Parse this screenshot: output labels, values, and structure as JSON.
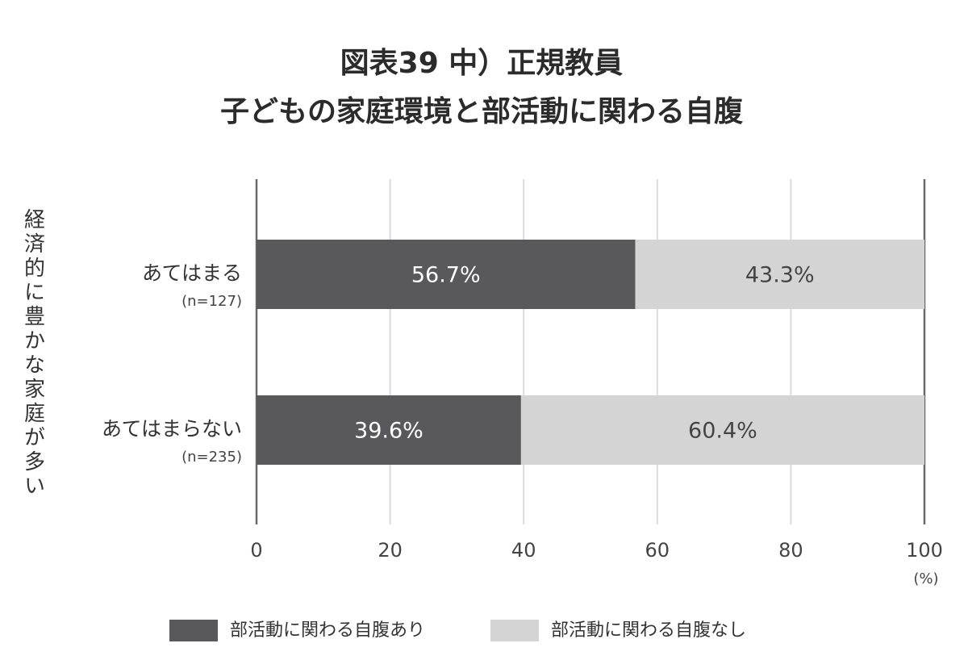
{
  "chart_data": {
    "type": "stacked_barh",
    "title": "図表39 中）正規教員",
    "subtitle": "子どもの家庭環境と部活動に関わる自腹",
    "y_axis_label": "経済的に豊かな家庭が多い",
    "x_axis_unit": "(%)",
    "categories": [
      "あてはまる",
      "あてはまらない"
    ],
    "category_notes": [
      "(n=127)",
      "(n=235)"
    ],
    "series": [
      {
        "name": "部活動に関わる自腹あり",
        "color": "#59595b",
        "values": [
          56.7,
          39.6
        ],
        "value_labels": [
          "56.7%",
          "39.6%"
        ]
      },
      {
        "name": "部活動に関わる自腹なし",
        "color": "#d4d4d5",
        "values": [
          43.3,
          60.4
        ],
        "value_labels": [
          "43.3%",
          "60.4%"
        ]
      }
    ],
    "xlim": [
      0,
      100
    ],
    "xticks": [
      0,
      20,
      40,
      60,
      80,
      100
    ],
    "grid": true
  }
}
